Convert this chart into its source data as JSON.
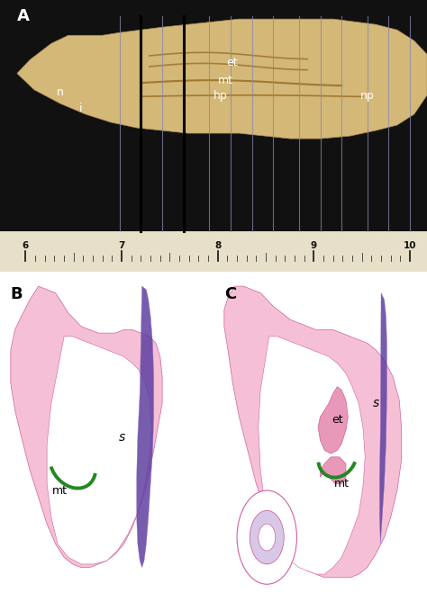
{
  "panel_A_bg": "#111111",
  "ruler_bg": "#e8dfc8",
  "ruler_line_color": "#333333",
  "white_color": "#ffffff",
  "pink_light": "#f5c0d5",
  "pink_mid": "#e898b8",
  "pink_dark_edge": "#d060a0",
  "purple_color": "#6040a0",
  "purple_light": "#9070c0",
  "green_color": "#228822",
  "panel_label_fontsize": 13,
  "anatomy_label_fontsize": 9,
  "ruler_ticks": [
    6,
    7,
    8,
    9,
    10
  ]
}
